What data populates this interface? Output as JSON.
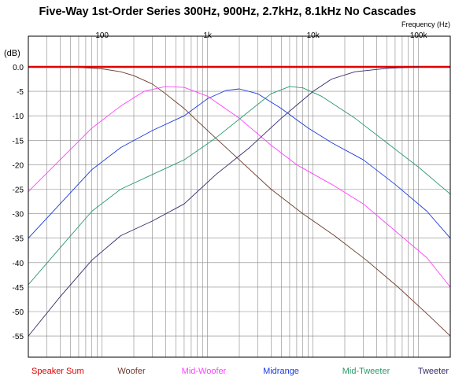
{
  "chart_data": {
    "type": "line",
    "title": "Five-Way 1st-Order Series 300Hz, 900Hz, 2.7kHz, 8.1kHz No Cascades",
    "xlabel": "Frequency (Hz)",
    "ylabel": "(dB)",
    "x_scale": "log",
    "xlim": [
      20,
      200000
    ],
    "ylim": [
      -55,
      0
    ],
    "grid": true,
    "x_tick_labels": [
      "100",
      "1k",
      "10k",
      "100k"
    ],
    "y_tick_labels": [
      "0.0",
      "-5",
      "-10",
      "-15",
      "-20",
      "-25",
      "-30",
      "-35",
      "-40",
      "-45",
      "-50",
      "-55"
    ],
    "legend_position": "bottom",
    "series": [
      {
        "name": "Speaker Sum",
        "color": "#e00000",
        "points": [
          [
            20,
            0
          ],
          [
            200000,
            0
          ]
        ]
      },
      {
        "name": "Woofer",
        "color": "#6b3a2a",
        "points": [
          [
            50,
            0
          ],
          [
            100,
            -0.4
          ],
          [
            150,
            -1
          ],
          [
            200,
            -1.8
          ],
          [
            300,
            -3.5
          ],
          [
            400,
            -5.5
          ],
          [
            600,
            -8.5
          ],
          [
            1000,
            -13
          ],
          [
            2000,
            -19
          ],
          [
            4000,
            -25
          ],
          [
            8000,
            -30
          ],
          [
            16000,
            -34.5
          ],
          [
            32000,
            -39.5
          ],
          [
            64000,
            -45
          ],
          [
            128000,
            -51
          ],
          [
            200000,
            -55
          ]
        ]
      },
      {
        "name": "Mid-Woofer",
        "color": "#ff40ff",
        "points": [
          [
            20,
            -25.5
          ],
          [
            40,
            -19
          ],
          [
            80,
            -12.5
          ],
          [
            150,
            -8
          ],
          [
            250,
            -5
          ],
          [
            400,
            -4
          ],
          [
            600,
            -4.2
          ],
          [
            1000,
            -6
          ],
          [
            2000,
            -10.5
          ],
          [
            4000,
            -16
          ],
          [
            7000,
            -20
          ],
          [
            15000,
            -24
          ],
          [
            30000,
            -28
          ],
          [
            60000,
            -33.5
          ],
          [
            120000,
            -39
          ],
          [
            200000,
            -45
          ]
        ]
      },
      {
        "name": "Midrange",
        "color": "#1a3ae0",
        "points": [
          [
            20,
            -35
          ],
          [
            40,
            -28
          ],
          [
            80,
            -21
          ],
          [
            150,
            -16.5
          ],
          [
            300,
            -13
          ],
          [
            600,
            -10
          ],
          [
            1000,
            -6.5
          ],
          [
            1500,
            -4.8
          ],
          [
            2000,
            -4.5
          ],
          [
            3000,
            -5.5
          ],
          [
            5000,
            -8.5
          ],
          [
            9000,
            -12.5
          ],
          [
            15000,
            -15.5
          ],
          [
            30000,
            -19
          ],
          [
            60000,
            -24
          ],
          [
            120000,
            -29.5
          ],
          [
            200000,
            -35
          ]
        ]
      },
      {
        "name": "Mid-Tweeter",
        "color": "#2a9a6a",
        "points": [
          [
            20,
            -44.5
          ],
          [
            40,
            -37
          ],
          [
            80,
            -29.5
          ],
          [
            150,
            -25
          ],
          [
            300,
            -22
          ],
          [
            600,
            -19
          ],
          [
            1200,
            -14.5
          ],
          [
            2500,
            -9
          ],
          [
            4000,
            -5.5
          ],
          [
            6000,
            -4
          ],
          [
            8000,
            -4.3
          ],
          [
            12000,
            -6
          ],
          [
            25000,
            -10.5
          ],
          [
            50000,
            -15.5
          ],
          [
            100000,
            -20.5
          ],
          [
            200000,
            -26
          ]
        ]
      },
      {
        "name": "Tweeter",
        "color": "#352a6b",
        "points": [
          [
            20,
            -55
          ],
          [
            40,
            -47
          ],
          [
            80,
            -39.5
          ],
          [
            150,
            -34.5
          ],
          [
            300,
            -31.5
          ],
          [
            600,
            -28
          ],
          [
            1200,
            -22
          ],
          [
            2500,
            -16.5
          ],
          [
            5000,
            -10.5
          ],
          [
            10000,
            -5
          ],
          [
            15000,
            -2.5
          ],
          [
            25000,
            -1
          ],
          [
            50000,
            -0.3
          ],
          [
            100000,
            0
          ]
        ]
      }
    ]
  }
}
